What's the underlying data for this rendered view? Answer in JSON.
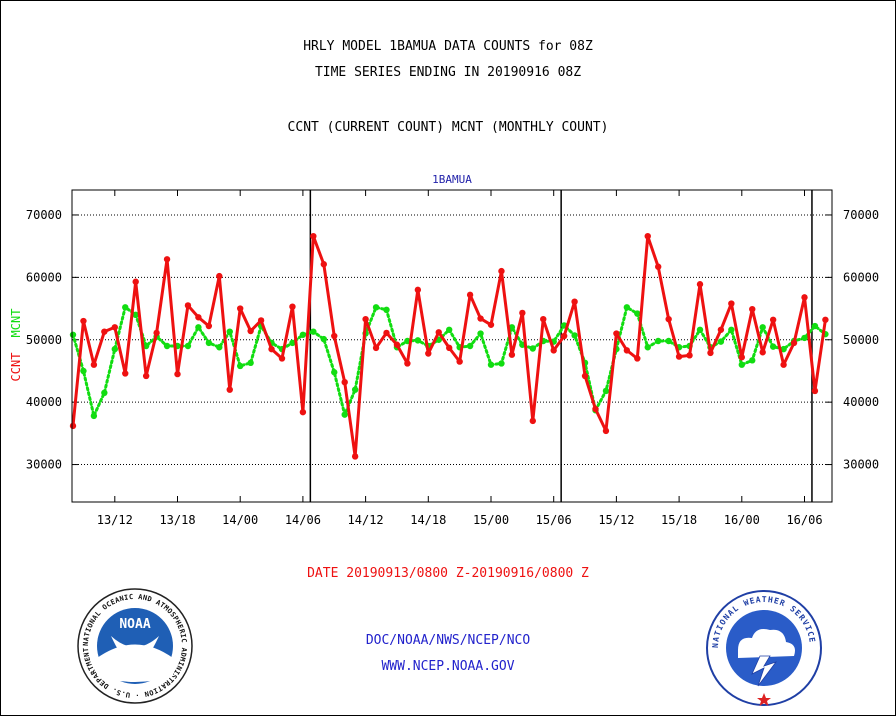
{
  "header": {
    "title_line1": "HRLY MODEL 1BAMUA DATA COUNTS for 08Z",
    "title_line2": "TIME SERIES ENDING IN 20190916 08Z",
    "subtitle": "CCNT (CURRENT COUNT) MCNT (MONTHLY COUNT)"
  },
  "footer": {
    "date_range": "DATE 20190913/0800 Z-20190916/0800 Z",
    "org": "DOC/NOAA/NWS/NCEP/NCO",
    "url": "WWW.NCEP.NOAA.GOV"
  },
  "logos": {
    "noaa_text": "NOAA",
    "noaa_ring": "NATIONAL OCEANIC AND ATMOSPHERIC ADMINISTRATION · U.S. DEPARTMENT OF COMMERCE",
    "nws_ring": "NATIONAL WEATHER SERVICE"
  },
  "chart_data": {
    "type": "line",
    "title": "1BAMUA",
    "xlabel": "",
    "ylabel_series1": "CCNT",
    "ylabel_series2": "MCNT",
    "ylim": [
      24000,
      74000
    ],
    "yticks": [
      30000,
      40000,
      50000,
      60000,
      70000
    ],
    "grid": true,
    "x_start": "13/08",
    "x_step_hours": 1,
    "xticks": [
      {
        "label": "13/12",
        "index": 4
      },
      {
        "label": "13/18",
        "index": 10
      },
      {
        "label": "14/00",
        "index": 16
      },
      {
        "label": "14/06",
        "index": 22
      },
      {
        "label": "14/12",
        "index": 28
      },
      {
        "label": "14/18",
        "index": 34
      },
      {
        "label": "15/00",
        "index": 40
      },
      {
        "label": "15/06",
        "index": 46
      },
      {
        "label": "15/12",
        "index": 52
      },
      {
        "label": "15/18",
        "index": 58
      },
      {
        "label": "16/00",
        "index": 64
      },
      {
        "label": "16/06",
        "index": 70
      }
    ],
    "day_boundaries": [
      23,
      47,
      71
    ],
    "series": [
      {
        "name": "CCNT",
        "color": "#ee1111",
        "values": [
          36200,
          53000,
          46000,
          51300,
          52000,
          44600,
          59300,
          44200,
          51100,
          62900,
          44500,
          55500,
          53600,
          52200,
          60200,
          42000,
          55000,
          51400,
          53100,
          48500,
          47000,
          55300,
          38400,
          66600,
          62100,
          50600,
          43200,
          31300,
          53300,
          48700,
          51100,
          49200,
          46200,
          58000,
          47800,
          51200,
          48700,
          46500,
          57200,
          53400,
          52400,
          61000,
          47600,
          54300,
          37000,
          53300,
          48300,
          50600,
          56100,
          44200,
          38900,
          35400,
          51000,
          48300,
          47000,
          66600,
          61700,
          53300,
          47300,
          47500,
          58900,
          47900,
          51600,
          55800,
          47200,
          54900,
          48000,
          53200,
          46000,
          49500,
          56800,
          41800,
          53200
        ]
      },
      {
        "name": "MCNT",
        "color": "#11dd11",
        "values": [
          50800,
          45000,
          37800,
          41500,
          48500,
          55200,
          54000,
          49000,
          50500,
          49000,
          49000,
          49000,
          52000,
          49500,
          48800,
          51300,
          45800,
          46300,
          52200,
          49500,
          48500,
          49500,
          50800,
          51300,
          50100,
          44800,
          38000,
          42000,
          51000,
          55200,
          54800,
          48800,
          49800,
          49900,
          49000,
          50000,
          51600,
          48800,
          49000,
          51000,
          46000,
          46200,
          52000,
          49200,
          48600,
          49800,
          49700,
          52300,
          50700,
          46300,
          38700,
          41800,
          48500,
          55200,
          54200,
          48800,
          49800,
          49800,
          48800,
          49000,
          51600,
          48800,
          49700,
          51600,
          46000,
          46700,
          52000,
          48900,
          48500,
          49800,
          50300,
          52200,
          50900
        ]
      }
    ]
  }
}
